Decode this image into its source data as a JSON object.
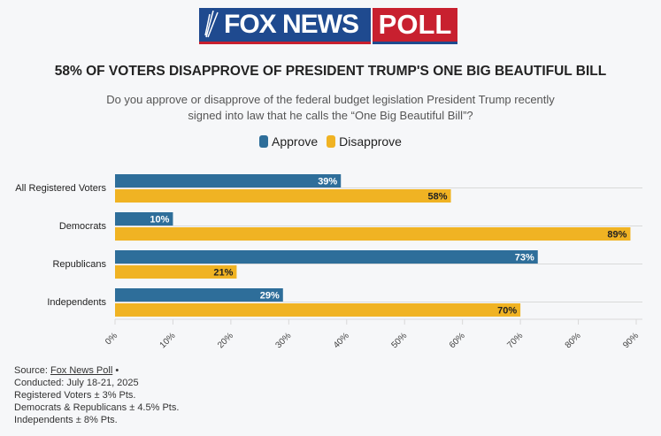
{
  "logo": {
    "left": "FOX NEWS",
    "right": "POLL"
  },
  "title": "58% OF VOTERS DISAPPROVE OF PRESIDENT TRUMP'S ONE BIG BEAUTIFUL BILL",
  "subtitle": "Do you approve or disapprove of the federal budget legislation President Trump recently signed into law that he calls the “One Big Beautiful Bill”?",
  "colors": {
    "approve": "#2e6e9a",
    "disapprove": "#f0b323",
    "grid": "#d9d9d9"
  },
  "chart_data": {
    "type": "bar",
    "orientation": "horizontal",
    "categories": [
      "All Registered Voters",
      "Democrats",
      "Republicans",
      "Independents"
    ],
    "series": [
      {
        "name": "Approve",
        "values": [
          39,
          10,
          73,
          29
        ]
      },
      {
        "name": "Disapprove",
        "values": [
          58,
          89,
          21,
          70
        ]
      }
    ],
    "xlim": [
      0,
      90
    ],
    "xticks": [
      "0%",
      "10%",
      "20%",
      "30%",
      "40%",
      "50%",
      "60%",
      "70%",
      "80%",
      "90%"
    ],
    "legend": "top-center"
  },
  "footer": {
    "source_label": "Source: ",
    "source_link": "Fox News Poll",
    "bullet": " •",
    "lines": [
      "Conducted: July 18-21, 2025",
      "Registered Voters ± 3% Pts.",
      "Democrats & Republicans ± 4.5% Pts.",
      "Independents ± 8% Pts."
    ]
  }
}
